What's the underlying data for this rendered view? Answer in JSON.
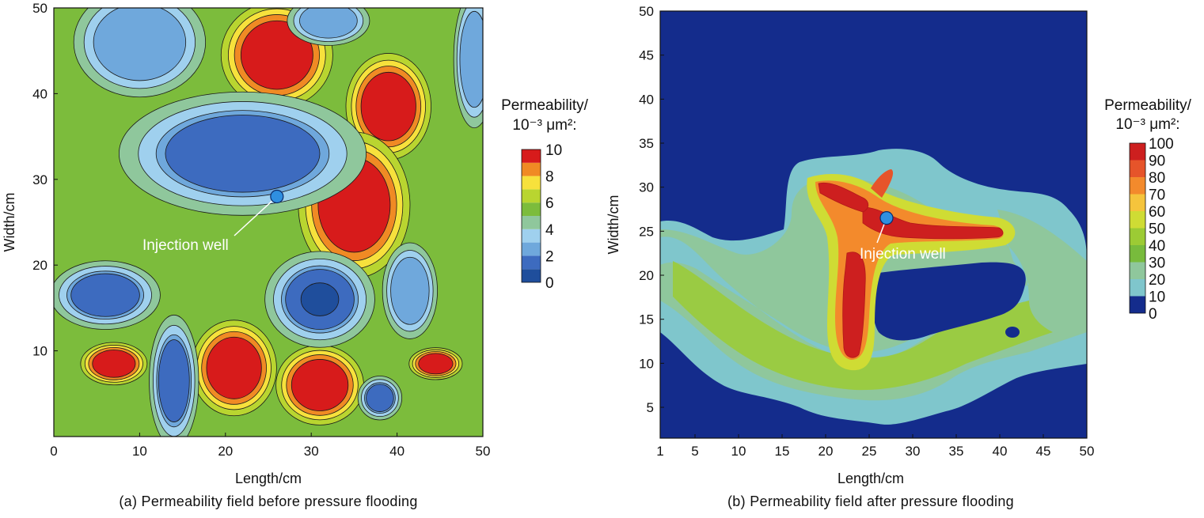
{
  "chart_data": [
    {
      "type": "heatmap",
      "xlabel": "Length/cm",
      "ylabel": "Width/cm",
      "caption": "(a) Permeability field before pressure flooding",
      "xlim": [
        0,
        50
      ],
      "ylim": [
        0,
        50
      ],
      "x_ticks": [
        "0",
        "10",
        "20",
        "30",
        "40",
        "50"
      ],
      "y_ticks": [
        "10",
        "20",
        "30",
        "40",
        "50"
      ],
      "legend_title_1": "Permeability/",
      "legend_title_2": "10⁻³ μm²:",
      "legend_levels": [
        "0",
        "2",
        "4",
        "6",
        "8",
        "10"
      ],
      "legend_colors": [
        "#1f4e9c",
        "#3d6bbf",
        "#6fa8dc",
        "#9fd0ee",
        "#8fc79c",
        "#7cbc3c",
        "#b9d530",
        "#f7e13c",
        "#f08a24",
        "#d71b1b"
      ],
      "annotation": "Injection well",
      "injection_well": {
        "x": 26,
        "y": 28
      },
      "background_color": "#7cbc3c",
      "zones": [
        {
          "name": "high-1",
          "x": 26,
          "y": 44.5,
          "r": [
            4.2,
            4.0
          ],
          "level": 10
        },
        {
          "name": "high-2",
          "x": 39,
          "y": 38.5,
          "r": [
            3.2,
            4.0
          ],
          "level": 10
        },
        {
          "name": "high-3",
          "x": 35,
          "y": 27.0,
          "r": [
            4.2,
            5.5
          ],
          "level": 10
        },
        {
          "name": "high-4",
          "x": 7,
          "y": 8.5,
          "r": [
            2.5,
            1.6
          ],
          "level": 10
        },
        {
          "name": "high-5",
          "x": 21,
          "y": 8.0,
          "r": [
            3.2,
            3.6
          ],
          "level": 10
        },
        {
          "name": "high-6",
          "x": 31,
          "y": 6.0,
          "r": [
            3.3,
            3.0
          ],
          "level": 10
        },
        {
          "name": "high-7",
          "x": 44.5,
          "y": 8.5,
          "r": [
            2.0,
            1.2
          ],
          "level": 10
        },
        {
          "name": "low-1",
          "x": 22,
          "y": 33.0,
          "r": [
            9.0,
            4.5
          ],
          "level": 1
        },
        {
          "name": "low-2",
          "x": 31,
          "y": 16.0,
          "r": [
            4.0,
            3.5
          ],
          "level": 0.5
        },
        {
          "name": "low-3",
          "x": 6,
          "y": 16.5,
          "r": [
            4.0,
            2.5
          ],
          "level": 1
        },
        {
          "name": "low-4",
          "x": 14,
          "y": 6.5,
          "r": [
            1.8,
            4.8
          ],
          "level": 1
        },
        {
          "name": "low-5",
          "x": 38,
          "y": 4.5,
          "r": [
            1.6,
            1.6
          ],
          "level": 1
        },
        {
          "name": "low-6",
          "x": 10,
          "y": 46.0,
          "r": [
            4.8,
            4.0
          ],
          "level": 3
        },
        {
          "name": "low-7",
          "x": 32,
          "y": 48.5,
          "r": [
            3.0,
            1.8
          ],
          "level": 3
        },
        {
          "name": "low-8",
          "x": 41.5,
          "y": 17.0,
          "r": [
            2.0,
            3.5
          ],
          "level": 3
        },
        {
          "name": "low-9",
          "x": 49,
          "y": 44.0,
          "r": [
            1.5,
            5.0
          ],
          "level": 3
        }
      ]
    },
    {
      "type": "heatmap",
      "xlabel": "Length/cm",
      "ylabel": "Width/cm",
      "caption": "(b) Permeability field after pressure flooding",
      "xlim": [
        1,
        50
      ],
      "ylim": [
        1.5,
        50
      ],
      "x_ticks": [
        "1",
        "5",
        "10",
        "15",
        "20",
        "25",
        "30",
        "35",
        "40",
        "45",
        "50"
      ],
      "y_ticks": [
        "5",
        "10",
        "15",
        "20",
        "25",
        "30",
        "35",
        "40",
        "45",
        "50"
      ],
      "legend_title_1": "Permeability/",
      "legend_title_2": "10⁻³ μm²:",
      "legend_levels": [
        "0",
        "10",
        "20",
        "30",
        "40",
        "50",
        "60",
        "70",
        "80",
        "90",
        "100"
      ],
      "legend_colors": [
        "#142c8c",
        "#7fc6cc",
        "#8fc79c",
        "#78bb3c",
        "#9ccb34",
        "#cfdc34",
        "#f5c43c",
        "#f38a2c",
        "#e6542a",
        "#cd1f1f"
      ],
      "annotation": "Injection well",
      "injection_well": {
        "x": 27,
        "y": 26.5
      },
      "background_color": "#142c8c",
      "zones": [
        {
          "name": "fracture-vertical",
          "x": 24,
          "y": 20.0,
          "level": 95
        },
        {
          "name": "fracture-horizontal",
          "x": 33,
          "y": 25.0,
          "level": 95
        },
        {
          "name": "swept-band",
          "x": 25,
          "y": 15.0,
          "level": 40
        },
        {
          "name": "outer-halo",
          "x": 25,
          "y": 15.0,
          "level": 15
        }
      ]
    }
  ]
}
